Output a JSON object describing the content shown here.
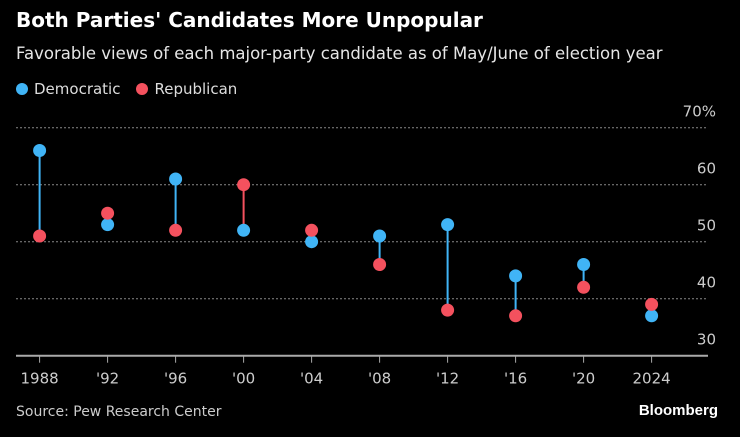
{
  "chart_data": {
    "type": "dumbbell",
    "title": "Both Parties' Candidates More Unpopular",
    "subtitle": "Favorable views of each major-party candidate as of May/June of election year",
    "categories": [
      "1988",
      "'92",
      "'96",
      "'00",
      "'04",
      "'08",
      "'12",
      "'16",
      "'20",
      "2024"
    ],
    "series": [
      {
        "name": "Democratic",
        "color": "#40b4f6",
        "values": [
          66,
          53,
          61,
          52,
          50,
          51,
          53,
          44,
          46,
          37
        ]
      },
      {
        "name": "Republican",
        "color": "#f4515e",
        "values": [
          51,
          55,
          52,
          60,
          52,
          46,
          38,
          37,
          42,
          39
        ]
      }
    ],
    "ylim": [
      30,
      70
    ],
    "yticks": [
      30,
      40,
      50,
      60,
      70
    ],
    "ytick_labels": [
      "30",
      "40",
      "50",
      "60",
      "70%"
    ],
    "grid": true,
    "legend": "top-left",
    "source": "Source: Pew Research Center",
    "brand": "Bloomberg"
  }
}
